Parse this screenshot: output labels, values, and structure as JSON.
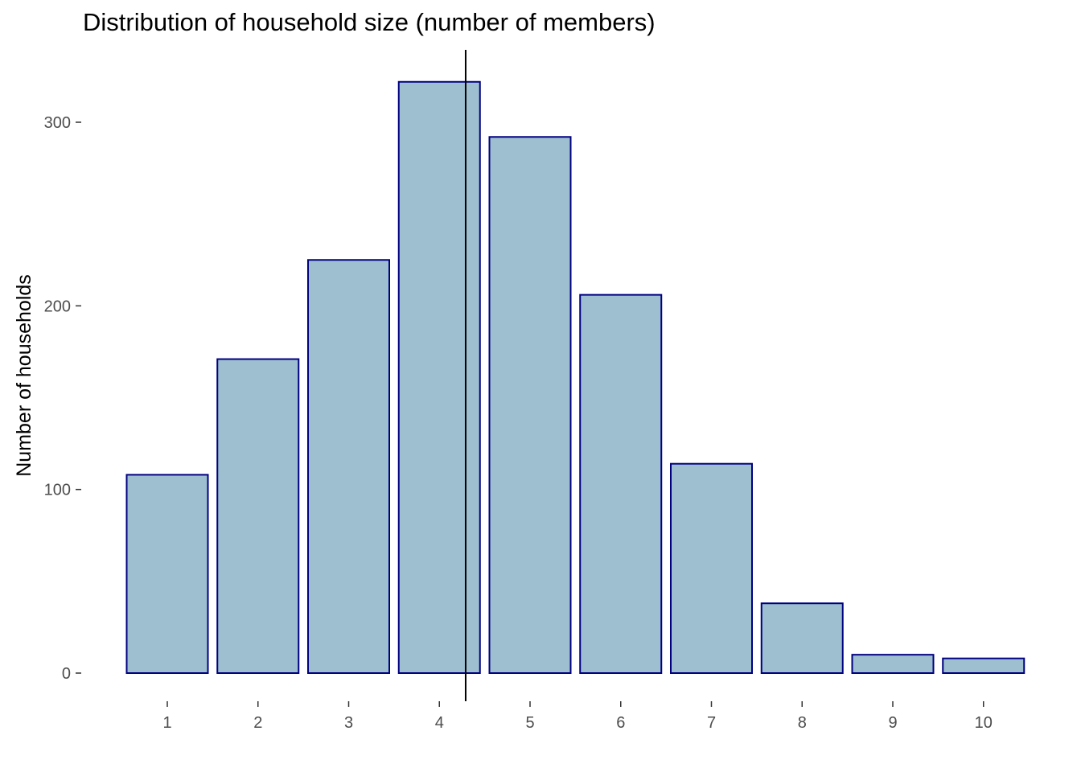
{
  "chart_data": {
    "type": "bar",
    "title": "Distribution of household size (number of members)",
    "xlabel": "",
    "ylabel": "Number of households",
    "categories": [
      "1",
      "2",
      "3",
      "4",
      "5",
      "6",
      "7",
      "8",
      "9",
      "10"
    ],
    "values": [
      108,
      171,
      225,
      322,
      292,
      206,
      114,
      38,
      10,
      8
    ],
    "ylim": [
      -15,
      338
    ],
    "yticks": [
      0,
      100,
      200,
      300
    ],
    "ytick_labels": [
      "0",
      "100",
      "200",
      "300"
    ],
    "reference_line": {
      "orientation": "vertical",
      "x": 4.29
    },
    "grid": false,
    "legend": "none",
    "colors": {
      "bar_fill": "#9dbfcf",
      "bar_stroke": "#000080",
      "reference_line": "#000000"
    }
  }
}
